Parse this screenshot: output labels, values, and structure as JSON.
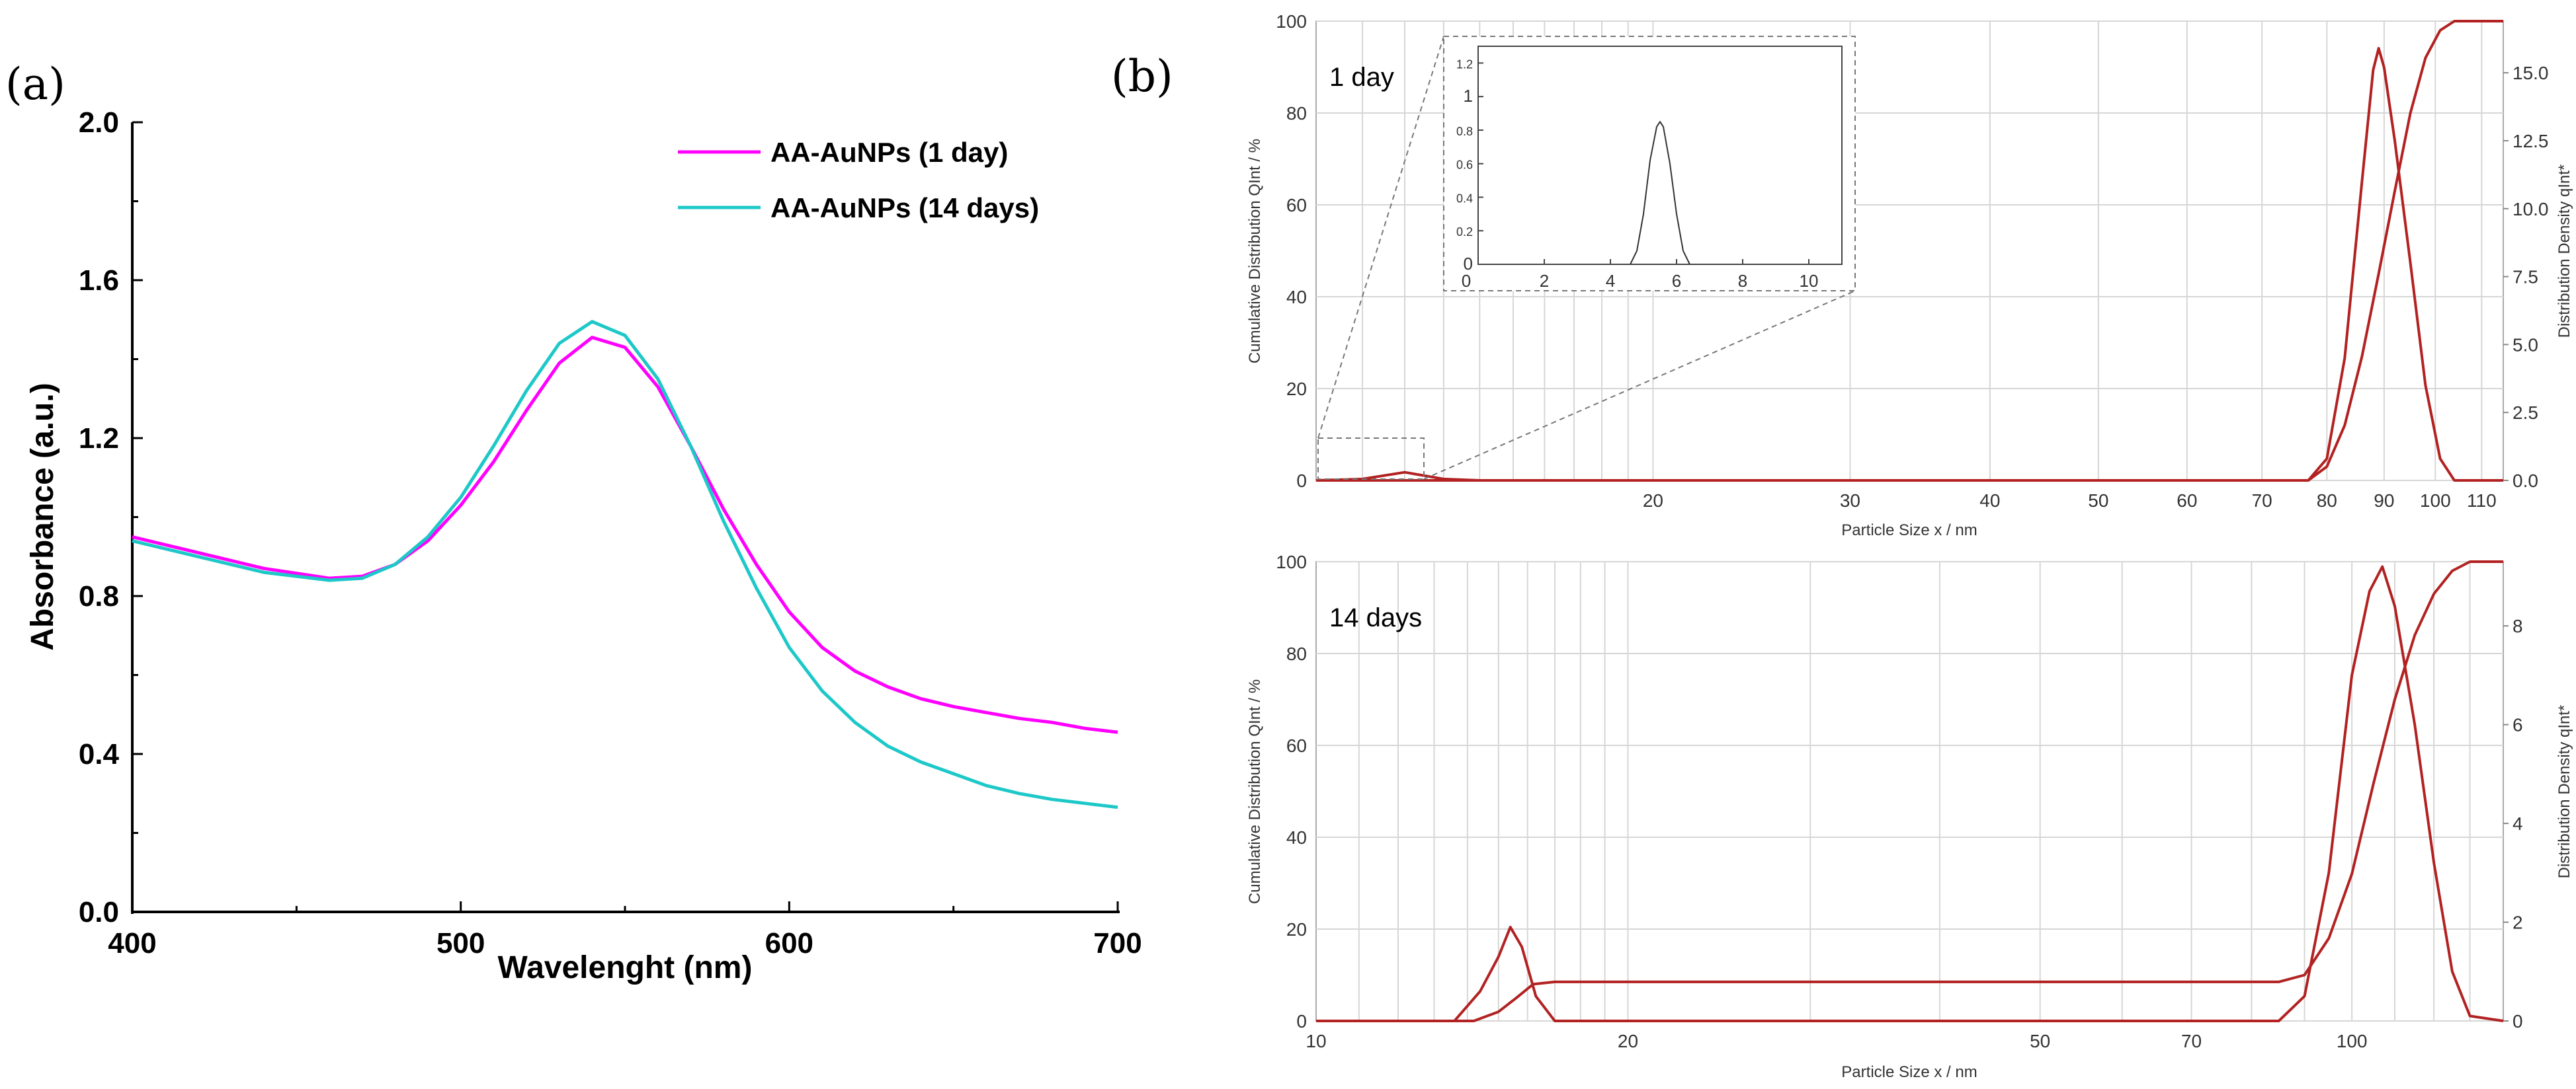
{
  "labels": {
    "a": "(a)",
    "b": "(b)"
  },
  "chart_data": [
    {
      "id": "a",
      "type": "line",
      "xlabel": "Wavelenght (nm)",
      "ylabel": "Absorbance (a.u.)",
      "xlim": [
        400,
        700
      ],
      "ylim": [
        0.0,
        2.0
      ],
      "x_ticks": [
        "400",
        "500",
        "600",
        "700"
      ],
      "y_ticks": [
        "0.0",
        "0.4",
        "0.8",
        "1.2",
        "1.6",
        "2.0"
      ],
      "legend_position": "top-right",
      "series": [
        {
          "name": "AA-AuNPs (1 day)",
          "color": "#ff00ff",
          "x": [
            400,
            420,
            440,
            460,
            470,
            480,
            490,
            500,
            510,
            520,
            530,
            540,
            550,
            560,
            570,
            580,
            590,
            600,
            610,
            620,
            630,
            640,
            650,
            660,
            670,
            680,
            690,
            700
          ],
          "y": [
            0.95,
            0.91,
            0.87,
            0.845,
            0.85,
            0.88,
            0.94,
            1.03,
            1.14,
            1.27,
            1.39,
            1.455,
            1.43,
            1.33,
            1.18,
            1.02,
            0.88,
            0.76,
            0.67,
            0.61,
            0.57,
            0.54,
            0.52,
            0.505,
            0.49,
            0.48,
            0.465,
            0.455
          ]
        },
        {
          "name": "AA-AuNPs (14 days)",
          "color": "#1ec8c8",
          "x": [
            400,
            420,
            440,
            460,
            470,
            480,
            490,
            500,
            510,
            520,
            530,
            540,
            550,
            560,
            570,
            580,
            590,
            600,
            610,
            620,
            630,
            640,
            650,
            660,
            670,
            680,
            690,
            700
          ],
          "y": [
            0.94,
            0.9,
            0.86,
            0.84,
            0.845,
            0.88,
            0.95,
            1.05,
            1.18,
            1.32,
            1.44,
            1.495,
            1.46,
            1.35,
            1.18,
            0.99,
            0.82,
            0.67,
            0.56,
            0.48,
            0.42,
            0.38,
            0.35,
            0.32,
            0.3,
            0.285,
            0.275,
            0.265
          ]
        }
      ]
    },
    {
      "id": "b-top",
      "type": "line",
      "title": "1 day",
      "xlabel": "Particle Size x / nm",
      "ylabel_left": "Cumulative Distribution QInt / %",
      "ylabel_right": "Distribution Density qInt*",
      "x_scale": "log",
      "xlim": [
        10,
        115
      ],
      "ylim_left": [
        0,
        100
      ],
      "ylim_right": [
        0,
        16.9
      ],
      "x_ticks": [
        "20",
        "30",
        "40",
        "50",
        "60",
        "70",
        "80",
        "90",
        "100",
        "110"
      ],
      "y_ticks_left": [
        "0",
        "20",
        "40",
        "60",
        "80",
        "100"
      ],
      "y_ticks_right": [
        "0.0",
        "2.5",
        "5.0",
        "7.5",
        "10.0",
        "12.5",
        "15.0"
      ],
      "series": [
        {
          "name": "cumulative",
          "axis": "left",
          "color": "#b22222",
          "x": [
            10,
            77,
            80,
            83,
            86,
            89,
            92,
            95,
            98,
            101,
            104,
            115
          ],
          "y": [
            0,
            0,
            3,
            12,
            27,
            45,
            63,
            80,
            92,
            98,
            100,
            100
          ]
        },
        {
          "name": "density",
          "axis": "right",
          "color": "#b22222",
          "x": [
            10,
            11,
            12,
            13,
            14,
            77,
            80,
            83,
            86,
            88,
            89,
            90,
            92,
            95,
            98,
            101,
            104,
            115
          ],
          "y": [
            0,
            0.05,
            0.3,
            0.05,
            0,
            0,
            0.8,
            4.5,
            11,
            15.1,
            15.9,
            15.2,
            12.5,
            8.0,
            3.5,
            0.8,
            0,
            0
          ]
        }
      ],
      "inset": {
        "xlim": [
          0,
          11
        ],
        "ylim": [
          0,
          1.3
        ],
        "x_ticks": [
          "0",
          "2",
          "4",
          "6",
          "8",
          "10"
        ],
        "y_ticks": [
          "0",
          "0.2",
          "0.4",
          "0.6",
          "0.8",
          "1",
          "1.2"
        ],
        "series": [
          {
            "name": "inset-density",
            "color": "#333333",
            "x": [
              4.6,
              4.8,
              5.0,
              5.2,
              5.4,
              5.5,
              5.6,
              5.8,
              6.0,
              6.2,
              6.4
            ],
            "y": [
              0,
              0.08,
              0.3,
              0.62,
              0.82,
              0.85,
              0.82,
              0.6,
              0.3,
              0.08,
              0
            ]
          }
        ]
      }
    },
    {
      "id": "b-bottom",
      "type": "line",
      "title": "14 days",
      "xlabel": "Particle Size x / nm",
      "ylabel_left": "Cumulative Distribution QInt / %",
      "ylabel_right": "Distribution Density qInt*",
      "x_scale": "log",
      "xlim": [
        10,
        140
      ],
      "ylim_left": [
        0,
        100
      ],
      "ylim_right": [
        0,
        9.3
      ],
      "x_ticks": [
        "10",
        "20",
        "50",
        "70",
        "100"
      ],
      "y_ticks_left": [
        "0",
        "20",
        "40",
        "60",
        "80",
        "100"
      ],
      "y_ticks_right": [
        "0",
        "2",
        "4",
        "6",
        "8"
      ],
      "series": [
        {
          "name": "cumulative",
          "axis": "left",
          "color": "#b22222",
          "x": [
            10,
            14.2,
            15.0,
            15.6,
            16.2,
            17.0,
            85,
            90,
            95,
            100,
            105,
            110,
            115,
            120,
            125,
            130,
            140
          ],
          "y": [
            0,
            0,
            2,
            5,
            8,
            8.5,
            8.5,
            10,
            18,
            32,
            52,
            70,
            84,
            93,
            98,
            100,
            100
          ]
        },
        {
          "name": "density",
          "axis": "right",
          "color": "#b22222",
          "x": [
            10,
            13.6,
            14.4,
            15.0,
            15.4,
            15.8,
            16.3,
            17.0,
            85,
            90,
            95,
            100,
            104,
            107,
            110,
            115,
            120,
            125,
            130,
            140
          ],
          "y": [
            0,
            0,
            0.6,
            1.3,
            1.9,
            1.5,
            0.5,
            0,
            0,
            0.5,
            3.0,
            7.0,
            8.7,
            9.2,
            8.4,
            6.0,
            3.2,
            1.0,
            0.1,
            0
          ]
        }
      ]
    }
  ]
}
